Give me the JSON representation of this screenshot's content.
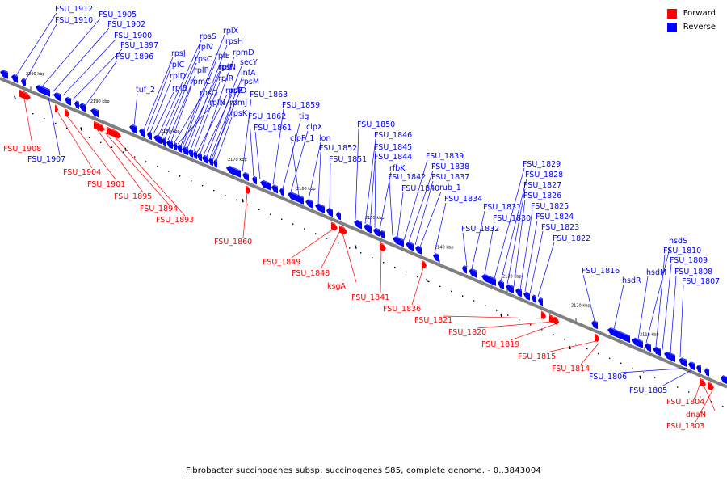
{
  "legend": {
    "forward_label": "Forward",
    "reverse_label": "Reverse",
    "forward_color": "#ff0000",
    "reverse_color": "#0000ff"
  },
  "caption": "Fibrobacter succinogenes subsp. succinogenes S85, complete genome. - 0..3843004",
  "axis_color": "#808080",
  "ticks": [
    "2200 kbp",
    "2190 kbp",
    "2180 kbp",
    "2170 kbp",
    "2160 kbp",
    "2150 kbp",
    "2140 kbp",
    "2130 kbp",
    "2120 kbp",
    "2110 kbp"
  ],
  "reverse_genes": [
    "FSU_1912",
    "FSU_1910",
    "FSU_1905",
    "FSU_1902",
    "FSU_1900",
    "FSU_1897",
    "FSU_1896",
    "tuf_2",
    "rpsJ",
    "rplC",
    "rplD",
    "rplB",
    "rpsS",
    "rplV",
    "rpsC",
    "rplP",
    "rpmC",
    "rpsQ",
    "rplN",
    "rplX",
    "rplE",
    "rpsN",
    "rpsH",
    "rplF",
    "rplR",
    "rpsE",
    "rpmD",
    "rplO",
    "secY",
    "infA",
    "rpmJ",
    "rpsM",
    "rpsK",
    "FSU_1863",
    "FSU_1862",
    "FSU_1861",
    "FSU_1859",
    "tig",
    "clpX",
    "clpP_1",
    "lon",
    "FSU_1852",
    "FSU_1851",
    "FSU_1850",
    "FSU_1846",
    "FSU_1845",
    "FSU_1844",
    "rfbK",
    "FSU_1842",
    "FSU_1840",
    "FSU_1839",
    "FSU_1838",
    "FSU_1837",
    "rub_1",
    "FSU_1834",
    "FSU_1832",
    "FSU_1831",
    "FSU_1830",
    "FSU_1829",
    "FSU_1828",
    "FSU_1827",
    "FSU_1826",
    "FSU_1825",
    "FSU_1824",
    "FSU_1823",
    "FSU_1822",
    "FSU_1816",
    "hsdR",
    "hsdM",
    "hsdS",
    "FSU_1810",
    "FSU_1809",
    "FSU_1808",
    "FSU_1807",
    "FSU_1907",
    "FSU_1806",
    "FSU_1805"
  ],
  "forward_genes": [
    "FSU_1908",
    "FSU_1904",
    "FSU_1901",
    "FSU_1895",
    "FSU_1894",
    "FSU_1893",
    "FSU_1860",
    "FSU_1849",
    "FSU_1848",
    "ksgA",
    "FSU_1841",
    "FSU_1836",
    "FSU_1821",
    "FSU_1820",
    "FSU_1819",
    "FSU_1815",
    "FSU_1814",
    "FSU_1804",
    "dnaN",
    "FSU_1803"
  ]
}
